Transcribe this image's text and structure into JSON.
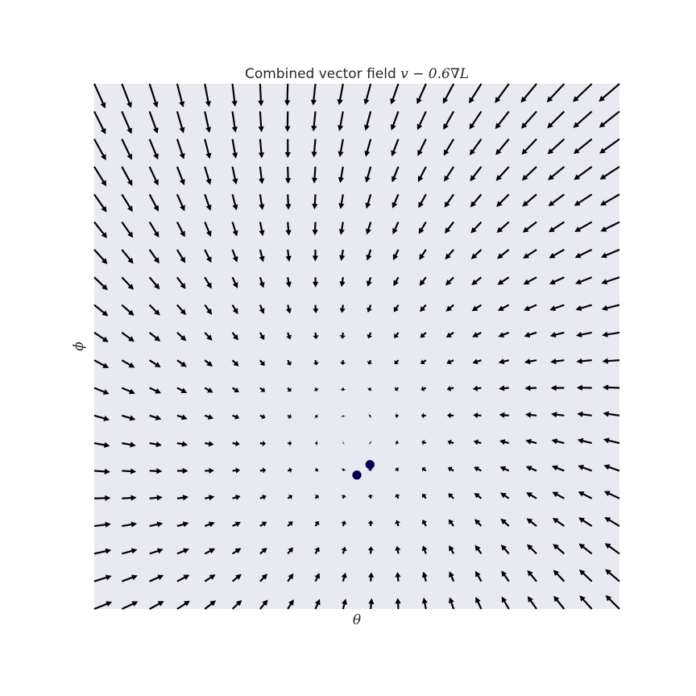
{
  "chart_data": {
    "type": "quiver",
    "title_main": "Combined vector field ",
    "title_math": "v − 0.6∇L",
    "xlabel": "θ",
    "ylabel": "ϕ",
    "xlim": [
      -1,
      1
    ],
    "ylim": [
      -1,
      1
    ],
    "grid": false,
    "axes_background": "#e9e9f1",
    "arrow_color": "#000000",
    "grid_points": 20,
    "field": {
      "description_formula": "v(θ,ϕ) = (−ϕ, θ) − 0.6∇L",
      "equilibrium": [
        -0.02,
        -0.34
      ]
    },
    "points": [
      {
        "x": 0.0,
        "y": -0.49
      },
      {
        "x": 0.05,
        "y": -0.45
      }
    ],
    "point_color": "#00005a"
  }
}
